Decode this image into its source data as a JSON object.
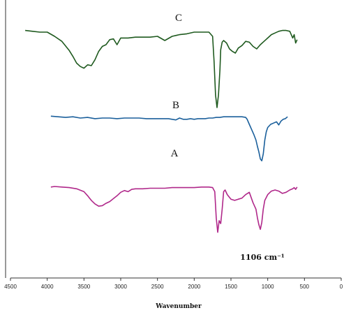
{
  "chart_data": {
    "type": "line",
    "title": "",
    "xlabel": "Wavenumber",
    "ylabel": "",
    "xlim": [
      4500,
      0
    ],
    "x_reversed": true,
    "x_ticks": [
      "4500",
      "4000",
      "3500",
      "3000",
      "2500",
      "2000",
      "1500",
      "1000",
      "500",
      "0"
    ],
    "grid": false,
    "annotation": "1106 cm⁻¹",
    "series": [
      {
        "name": "C",
        "color": "#1f5a1f",
        "x": [
          4300,
          4200,
          4100,
          4000,
          3900,
          3800,
          3700,
          3650,
          3600,
          3550,
          3500,
          3450,
          3400,
          3350,
          3300,
          3250,
          3200,
          3150,
          3100,
          3050,
          3000,
          2900,
          2800,
          2700,
          2600,
          2500,
          2400,
          2300,
          2200,
          2100,
          2000,
          1900,
          1800,
          1750,
          1730,
          1710,
          1690,
          1670,
          1650,
          1640,
          1620,
          1600,
          1560,
          1520,
          1480,
          1440,
          1400,
          1350,
          1300,
          1250,
          1200,
          1150,
          1100,
          1050,
          1000,
          950,
          900,
          850,
          800,
          750,
          700,
          660,
          640,
          620,
          600
        ],
        "y": [
          0.97,
          0.96,
          0.95,
          0.95,
          0.9,
          0.84,
          0.73,
          0.66,
          0.58,
          0.54,
          0.52,
          0.56,
          0.55,
          0.62,
          0.72,
          0.78,
          0.8,
          0.86,
          0.87,
          0.8,
          0.88,
          0.88,
          0.89,
          0.89,
          0.89,
          0.9,
          0.85,
          0.9,
          0.92,
          0.93,
          0.95,
          0.95,
          0.95,
          0.9,
          0.6,
          0.2,
          0.05,
          0.2,
          0.5,
          0.74,
          0.83,
          0.85,
          0.82,
          0.75,
          0.72,
          0.7,
          0.76,
          0.79,
          0.84,
          0.83,
          0.78,
          0.75,
          0.8,
          0.84,
          0.88,
          0.92,
          0.94,
          0.96,
          0.97,
          0.97,
          0.96,
          0.88,
          0.92,
          0.82,
          0.86
        ]
      },
      {
        "name": "B",
        "color": "#1a5f9b",
        "x": [
          3950,
          3850,
          3750,
          3650,
          3550,
          3450,
          3350,
          3250,
          3150,
          3050,
          2950,
          2850,
          2750,
          2650,
          2550,
          2450,
          2350,
          2300,
          2250,
          2200,
          2150,
          2100,
          2050,
          2000,
          1950,
          1900,
          1850,
          1800,
          1750,
          1700,
          1650,
          1600,
          1550,
          1500,
          1450,
          1400,
          1350,
          1300,
          1280,
          1250,
          1220,
          1190,
          1160,
          1140,
          1120,
          1100,
          1080,
          1060,
          1040,
          1020,
          1000,
          960,
          920,
          880,
          850,
          820,
          790,
          760,
          730
        ],
        "y": [
          0.93,
          0.92,
          0.91,
          0.92,
          0.9,
          0.91,
          0.89,
          0.9,
          0.9,
          0.89,
          0.9,
          0.9,
          0.9,
          0.89,
          0.89,
          0.89,
          0.89,
          0.88,
          0.87,
          0.9,
          0.88,
          0.88,
          0.89,
          0.88,
          0.89,
          0.89,
          0.89,
          0.9,
          0.9,
          0.91,
          0.91,
          0.92,
          0.92,
          0.92,
          0.92,
          0.92,
          0.92,
          0.91,
          0.88,
          0.8,
          0.72,
          0.64,
          0.55,
          0.45,
          0.36,
          0.25,
          0.22,
          0.33,
          0.55,
          0.68,
          0.75,
          0.8,
          0.82,
          0.84,
          0.79,
          0.85,
          0.88,
          0.89,
          0.92
        ]
      },
      {
        "name": "A",
        "color": "#b0288a",
        "x": [
          3950,
          3900,
          3800,
          3700,
          3600,
          3500,
          3450,
          3400,
          3350,
          3300,
          3250,
          3200,
          3150,
          3100,
          3050,
          3000,
          2950,
          2900,
          2850,
          2800,
          2700,
          2600,
          2500,
          2400,
          2300,
          2200,
          2100,
          2000,
          1900,
          1800,
          1750,
          1720,
          1700,
          1680,
          1660,
          1640,
          1620,
          1600,
          1580,
          1550,
          1500,
          1450,
          1400,
          1350,
          1300,
          1250,
          1200,
          1160,
          1140,
          1120,
          1100,
          1080,
          1060,
          1040,
          1000,
          950,
          900,
          850,
          800,
          750,
          700,
          660,
          640,
          620,
          600
        ],
        "y": [
          0.93,
          0.94,
          0.93,
          0.92,
          0.9,
          0.85,
          0.78,
          0.7,
          0.64,
          0.6,
          0.61,
          0.65,
          0.68,
          0.73,
          0.78,
          0.84,
          0.87,
          0.85,
          0.89,
          0.9,
          0.9,
          0.91,
          0.91,
          0.91,
          0.92,
          0.92,
          0.92,
          0.92,
          0.93,
          0.93,
          0.92,
          0.85,
          0.4,
          0.15,
          0.35,
          0.3,
          0.55,
          0.85,
          0.88,
          0.8,
          0.72,
          0.7,
          0.72,
          0.74,
          0.8,
          0.84,
          0.66,
          0.55,
          0.4,
          0.28,
          0.2,
          0.32,
          0.55,
          0.7,
          0.8,
          0.86,
          0.88,
          0.86,
          0.82,
          0.84,
          0.88,
          0.9,
          0.92,
          0.89,
          0.93
        ]
      }
    ]
  }
}
